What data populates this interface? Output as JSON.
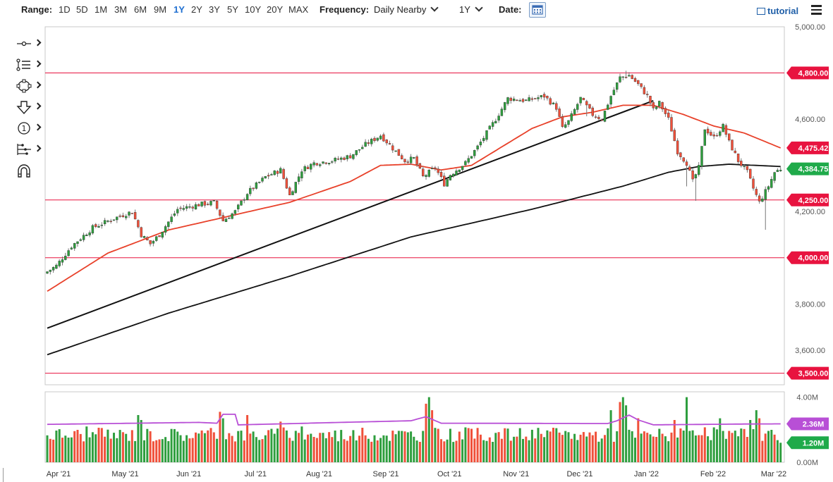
{
  "toolbar": {
    "range_label": "Range:",
    "ranges": [
      "1D",
      "5D",
      "1M",
      "3M",
      "6M",
      "9M",
      "1Y",
      "2Y",
      "3Y",
      "5Y",
      "10Y",
      "20Y",
      "MAX"
    ],
    "active_range": "1Y",
    "frequency_label": "Frequency:",
    "frequency_value": "Daily Nearby",
    "period_value": "1Y",
    "date_label": "Date:",
    "tutorial_label": "tutorial"
  },
  "tools": [
    "crosshair-tool-icon",
    "text-tool-icon",
    "shape-tool-icon",
    "arrow-tool-icon",
    "annotation-tool-icon",
    "measure-tool-icon",
    "magnet-tool-icon"
  ],
  "colors": {
    "up": "#2e9e3e",
    "down": "#f0503a",
    "sma_short": "#e8412a",
    "sma_long": "#111111",
    "trendline": "#111111",
    "hline": "#e8133f",
    "volume_avg": "#b84fd6",
    "label_red": "#e8133f",
    "label_green": "#1faa4a",
    "label_purple": "#b84fd6"
  },
  "chart_data": {
    "type": "candlestick",
    "instrument_frequency": "Daily Nearby",
    "price_axis": {
      "ylim": [
        3450,
        5000
      ],
      "ticks": [
        {
          "value": 5000,
          "label": "5,000.00"
        },
        {
          "value": 4600,
          "label": "4,600.00"
        },
        {
          "value": 4200,
          "label": "4,200.00"
        },
        {
          "value": 3800,
          "label": "3,800.00"
        },
        {
          "value": 3600,
          "label": "3,600.00"
        }
      ]
    },
    "horizontal_lines": [
      {
        "value": 4800,
        "label": "4,800.00"
      },
      {
        "value": 4250,
        "label": "4,250.00"
      },
      {
        "value": 4000,
        "label": "4,000.00"
      },
      {
        "value": 3500,
        "label": "3,500.00"
      }
    ],
    "price_labels": [
      {
        "label": "4,475.42",
        "value": 4475.42,
        "series": "sma_short",
        "color": "red"
      },
      {
        "label": "4,384.75",
        "value": 4384.75,
        "series": "last",
        "color": "green"
      }
    ],
    "x_axis": {
      "labels": [
        "Apr '21",
        "May '21",
        "Jun '21",
        "Jul '21",
        "Aug '21",
        "Sep '21",
        "Oct '21",
        "Nov '21",
        "Dec '21",
        "Jan '22",
        "Feb '22",
        "Mar '22"
      ],
      "label_index": [
        0,
        22,
        43,
        65,
        86,
        108,
        129,
        151,
        172,
        194,
        216,
        236
      ]
    },
    "price_anchors": [
      [
        0,
        3940
      ],
      [
        3,
        3965
      ],
      [
        8,
        4050
      ],
      [
        15,
        4130
      ],
      [
        22,
        4170
      ],
      [
        28,
        4200
      ],
      [
        31,
        4100
      ],
      [
        34,
        4060
      ],
      [
        37,
        4100
      ],
      [
        43,
        4210
      ],
      [
        50,
        4230
      ],
      [
        55,
        4240
      ],
      [
        58,
        4160
      ],
      [
        62,
        4200
      ],
      [
        66,
        4280
      ],
      [
        72,
        4350
      ],
      [
        77,
        4380
      ],
      [
        80,
        4270
      ],
      [
        84,
        4380
      ],
      [
        88,
        4410
      ],
      [
        94,
        4420
      ],
      [
        100,
        4440
      ],
      [
        105,
        4490
      ],
      [
        110,
        4530
      ],
      [
        115,
        4460
      ],
      [
        118,
        4420
      ],
      [
        121,
        4430
      ],
      [
        124,
        4350
      ],
      [
        128,
        4390
      ],
      [
        131,
        4320
      ],
      [
        133,
        4360
      ],
      [
        138,
        4410
      ],
      [
        142,
        4480
      ],
      [
        148,
        4600
      ],
      [
        152,
        4690
      ],
      [
        158,
        4680
      ],
      [
        164,
        4700
      ],
      [
        168,
        4650
      ],
      [
        170,
        4560
      ],
      [
        172,
        4590
      ],
      [
        176,
        4690
      ],
      [
        180,
        4620
      ],
      [
        183,
        4600
      ],
      [
        186,
        4700
      ],
      [
        189,
        4780
      ],
      [
        192,
        4790
      ],
      [
        195,
        4750
      ],
      [
        198,
        4700
      ],
      [
        200,
        4640
      ],
      [
        202,
        4670
      ],
      [
        205,
        4600
      ],
      [
        208,
        4460
      ],
      [
        211,
        4410
      ],
      [
        213,
        4330
      ],
      [
        215,
        4390
      ],
      [
        217,
        4560
      ],
      [
        220,
        4520
      ],
      [
        223,
        4570
      ],
      [
        225,
        4500
      ],
      [
        228,
        4420
      ],
      [
        231,
        4370
      ],
      [
        233,
        4300
      ],
      [
        235,
        4240
      ],
      [
        238,
        4310
      ],
      [
        240,
        4370
      ],
      [
        242,
        4384.75
      ]
    ],
    "sma_short_anchors": [
      [
        0,
        3855
      ],
      [
        20,
        4020
      ],
      [
        40,
        4120
      ],
      [
        60,
        4180
      ],
      [
        80,
        4240
      ],
      [
        100,
        4330
      ],
      [
        110,
        4400
      ],
      [
        120,
        4405
      ],
      [
        130,
        4380
      ],
      [
        140,
        4400
      ],
      [
        150,
        4480
      ],
      [
        160,
        4560
      ],
      [
        170,
        4610
      ],
      [
        180,
        4630
      ],
      [
        190,
        4660
      ],
      [
        200,
        4660
      ],
      [
        210,
        4620
      ],
      [
        220,
        4570
      ],
      [
        230,
        4540
      ],
      [
        242,
        4475.42
      ]
    ],
    "sma_long_anchors": [
      [
        0,
        3580
      ],
      [
        40,
        3760
      ],
      [
        80,
        3920
      ],
      [
        120,
        4090
      ],
      [
        160,
        4210
      ],
      [
        190,
        4310
      ],
      [
        205,
        4370
      ],
      [
        215,
        4395
      ],
      [
        225,
        4405
      ],
      [
        242,
        4395
      ]
    ],
    "trendline": {
      "from": [
        0,
        3695
      ],
      "to": [
        200,
        4680
      ]
    },
    "volume": {
      "ylim": [
        0,
        4.2
      ],
      "ticks": [
        {
          "value": 4.0,
          "label": "4.00M"
        },
        {
          "value": 0,
          "label": "0.00M"
        }
      ],
      "labels": [
        {
          "label": "2.36M",
          "value": 2.36,
          "series": "average",
          "color": "purple"
        },
        {
          "label": "1.20M",
          "value": 1.2,
          "series": "last",
          "color": "green"
        }
      ],
      "baseline_m": 1.7,
      "spikes": [
        [
          13,
          2.2
        ],
        [
          30,
          2.9
        ],
        [
          31,
          2.6
        ],
        [
          57,
          3.1
        ],
        [
          58,
          2.7
        ],
        [
          66,
          2.9
        ],
        [
          77,
          2.5
        ],
        [
          84,
          2.2
        ],
        [
          125,
          3.6
        ],
        [
          126,
          4.0
        ],
        [
          127,
          3.2
        ],
        [
          186,
          3.2
        ],
        [
          189,
          3.7
        ],
        [
          190,
          4.0
        ],
        [
          191,
          3.5
        ],
        [
          195,
          2.7
        ],
        [
          207,
          2.6
        ],
        [
          211,
          4.0
        ],
        [
          222,
          2.7
        ],
        [
          232,
          2.6
        ],
        [
          234,
          3.2
        ],
        [
          235,
          2.7
        ]
      ],
      "average_anchors": [
        [
          0,
          2.33
        ],
        [
          50,
          2.45
        ],
        [
          56,
          2.4
        ],
        [
          58,
          2.95
        ],
        [
          62,
          2.95
        ],
        [
          63,
          2.3
        ],
        [
          120,
          2.55
        ],
        [
          125,
          2.8
        ],
        [
          130,
          2.4
        ],
        [
          185,
          2.38
        ],
        [
          188,
          2.55
        ],
        [
          192,
          2.9
        ],
        [
          195,
          2.6
        ],
        [
          200,
          2.3
        ],
        [
          230,
          2.35
        ],
        [
          242,
          2.36
        ]
      ]
    }
  }
}
